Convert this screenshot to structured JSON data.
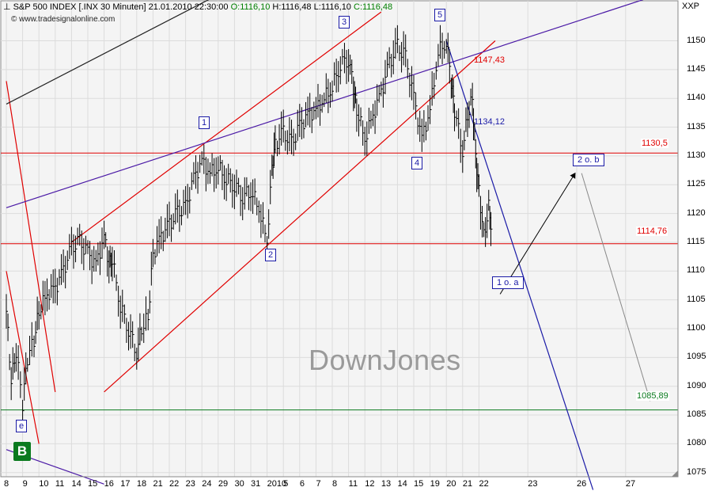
{
  "header": {
    "instrument": "S&P 500 INDEX [.INX  30 Minuten]",
    "datetime": "21.01.2010 22:30:00",
    "open": "O:1116,10",
    "high": "H:1116,48",
    "low": "L:1116,10",
    "close": "C:1116,48",
    "source": "© www.tradesignalonline.com",
    "symbol": "XXP"
  },
  "watermark": "DownJones",
  "badge": "B",
  "colors": {
    "up": "#000000",
    "red": "#e00000",
    "blue": "#1a1aa6",
    "purple": "#4b1aa6",
    "green": "#0a7a1e",
    "grid": "#dcdcdc",
    "gray": "#888888"
  },
  "chart_data": {
    "type": "line",
    "y_axis": {
      "min": 1072,
      "max": 1158,
      "ticks": [
        1075,
        1080,
        1085,
        1090,
        1095,
        1100,
        1105,
        1110,
        1115,
        1120,
        1125,
        1130,
        1135,
        1140,
        1145,
        1150
      ]
    },
    "x_axis": {
      "labels": [
        "8",
        "9",
        "10",
        "11",
        "14",
        "15",
        "16",
        "17",
        "18",
        "21",
        "22",
        "23",
        "24",
        "29",
        "30",
        "31",
        "2010",
        "5",
        "6",
        "7",
        "8",
        "11",
        "12",
        "13",
        "14",
        "15",
        "19",
        "20",
        "21",
        "22",
        "23",
        "26",
        "27"
      ],
      "positions": [
        0,
        1,
        2,
        3,
        4,
        5,
        6,
        7,
        8,
        9,
        10,
        11,
        12,
        13,
        14,
        15,
        16,
        17,
        18,
        19,
        20,
        21,
        22,
        23,
        24,
        25,
        26,
        27,
        28,
        29,
        32,
        35,
        38
      ]
    },
    "series": [
      {
        "name": "",
        "points": [
          [
            0,
            1103
          ],
          [
            0.3,
            1091
          ],
          [
            0.6,
            1096
          ],
          [
            1,
            1087
          ],
          [
            1.3,
            1095
          ],
          [
            1.7,
            1098
          ],
          [
            2,
            1103
          ],
          [
            2.5,
            1106
          ],
          [
            3,
            1107
          ],
          [
            3.5,
            1110
          ],
          [
            4,
            1114
          ],
          [
            4.5,
            1115
          ],
          [
            5,
            1113
          ],
          [
            5.5,
            1111
          ],
          [
            6,
            1116
          ],
          [
            6.3,
            1111
          ],
          [
            6.5,
            1112
          ],
          [
            7,
            1104
          ],
          [
            7.5,
            1100
          ],
          [
            8,
            1096
          ],
          [
            8.3,
            1100
          ],
          [
            8.7,
            1102
          ],
          [
            9,
            1113
          ],
          [
            9.5,
            1116
          ],
          [
            10,
            1118
          ],
          [
            10.5,
            1120
          ],
          [
            11,
            1121
          ],
          [
            11.5,
            1126
          ],
          [
            12,
            1129
          ],
          [
            12.5,
            1127
          ],
          [
            13,
            1128
          ],
          [
            13.5,
            1126
          ],
          [
            14,
            1125
          ],
          [
            14.5,
            1123
          ],
          [
            15,
            1124
          ],
          [
            15.5,
            1121
          ],
          [
            16,
            1115
          ],
          [
            16.3,
            1128
          ],
          [
            16.5,
            1132
          ],
          [
            17,
            1134
          ],
          [
            17.5,
            1132
          ],
          [
            18,
            1135
          ],
          [
            18.5,
            1137
          ],
          [
            19,
            1138
          ],
          [
            19.5,
            1140
          ],
          [
            20,
            1142
          ],
          [
            20.5,
            1146
          ],
          [
            21,
            1147
          ],
          [
            21.3,
            1142
          ],
          [
            21.5,
            1138
          ],
          [
            22,
            1133
          ],
          [
            22.5,
            1137
          ],
          [
            23,
            1141
          ],
          [
            23.5,
            1146
          ],
          [
            24,
            1149
          ],
          [
            24.5,
            1147
          ],
          [
            25,
            1140
          ],
          [
            25.5,
            1133
          ],
          [
            26,
            1138
          ],
          [
            26.5,
            1148
          ],
          [
            27,
            1150
          ],
          [
            27.3,
            1143
          ],
          [
            27.5,
            1138
          ],
          [
            28,
            1131
          ],
          [
            28.3,
            1137
          ],
          [
            28.6,
            1140
          ],
          [
            28.8,
            1130
          ],
          [
            29,
            1124
          ],
          [
            29.3,
            1116
          ],
          [
            29.6,
            1121
          ],
          [
            29.8,
            1117
          ]
        ]
      }
    ],
    "levels": [
      {
        "value": 1130.5,
        "label": "1130,5",
        "color": "red"
      },
      {
        "value": 1114.76,
        "label": "1114,76",
        "color": "red"
      },
      {
        "value": 1085.89,
        "label": "1085,89",
        "color": "green"
      }
    ],
    "annotations": {
      "target_top": "1147,43",
      "mid_level": "1134,12",
      "waves": [
        "1",
        "2",
        "3",
        "4",
        "5",
        "e"
      ],
      "projections": [
        "1 o. a",
        "2 o. b"
      ]
    }
  }
}
